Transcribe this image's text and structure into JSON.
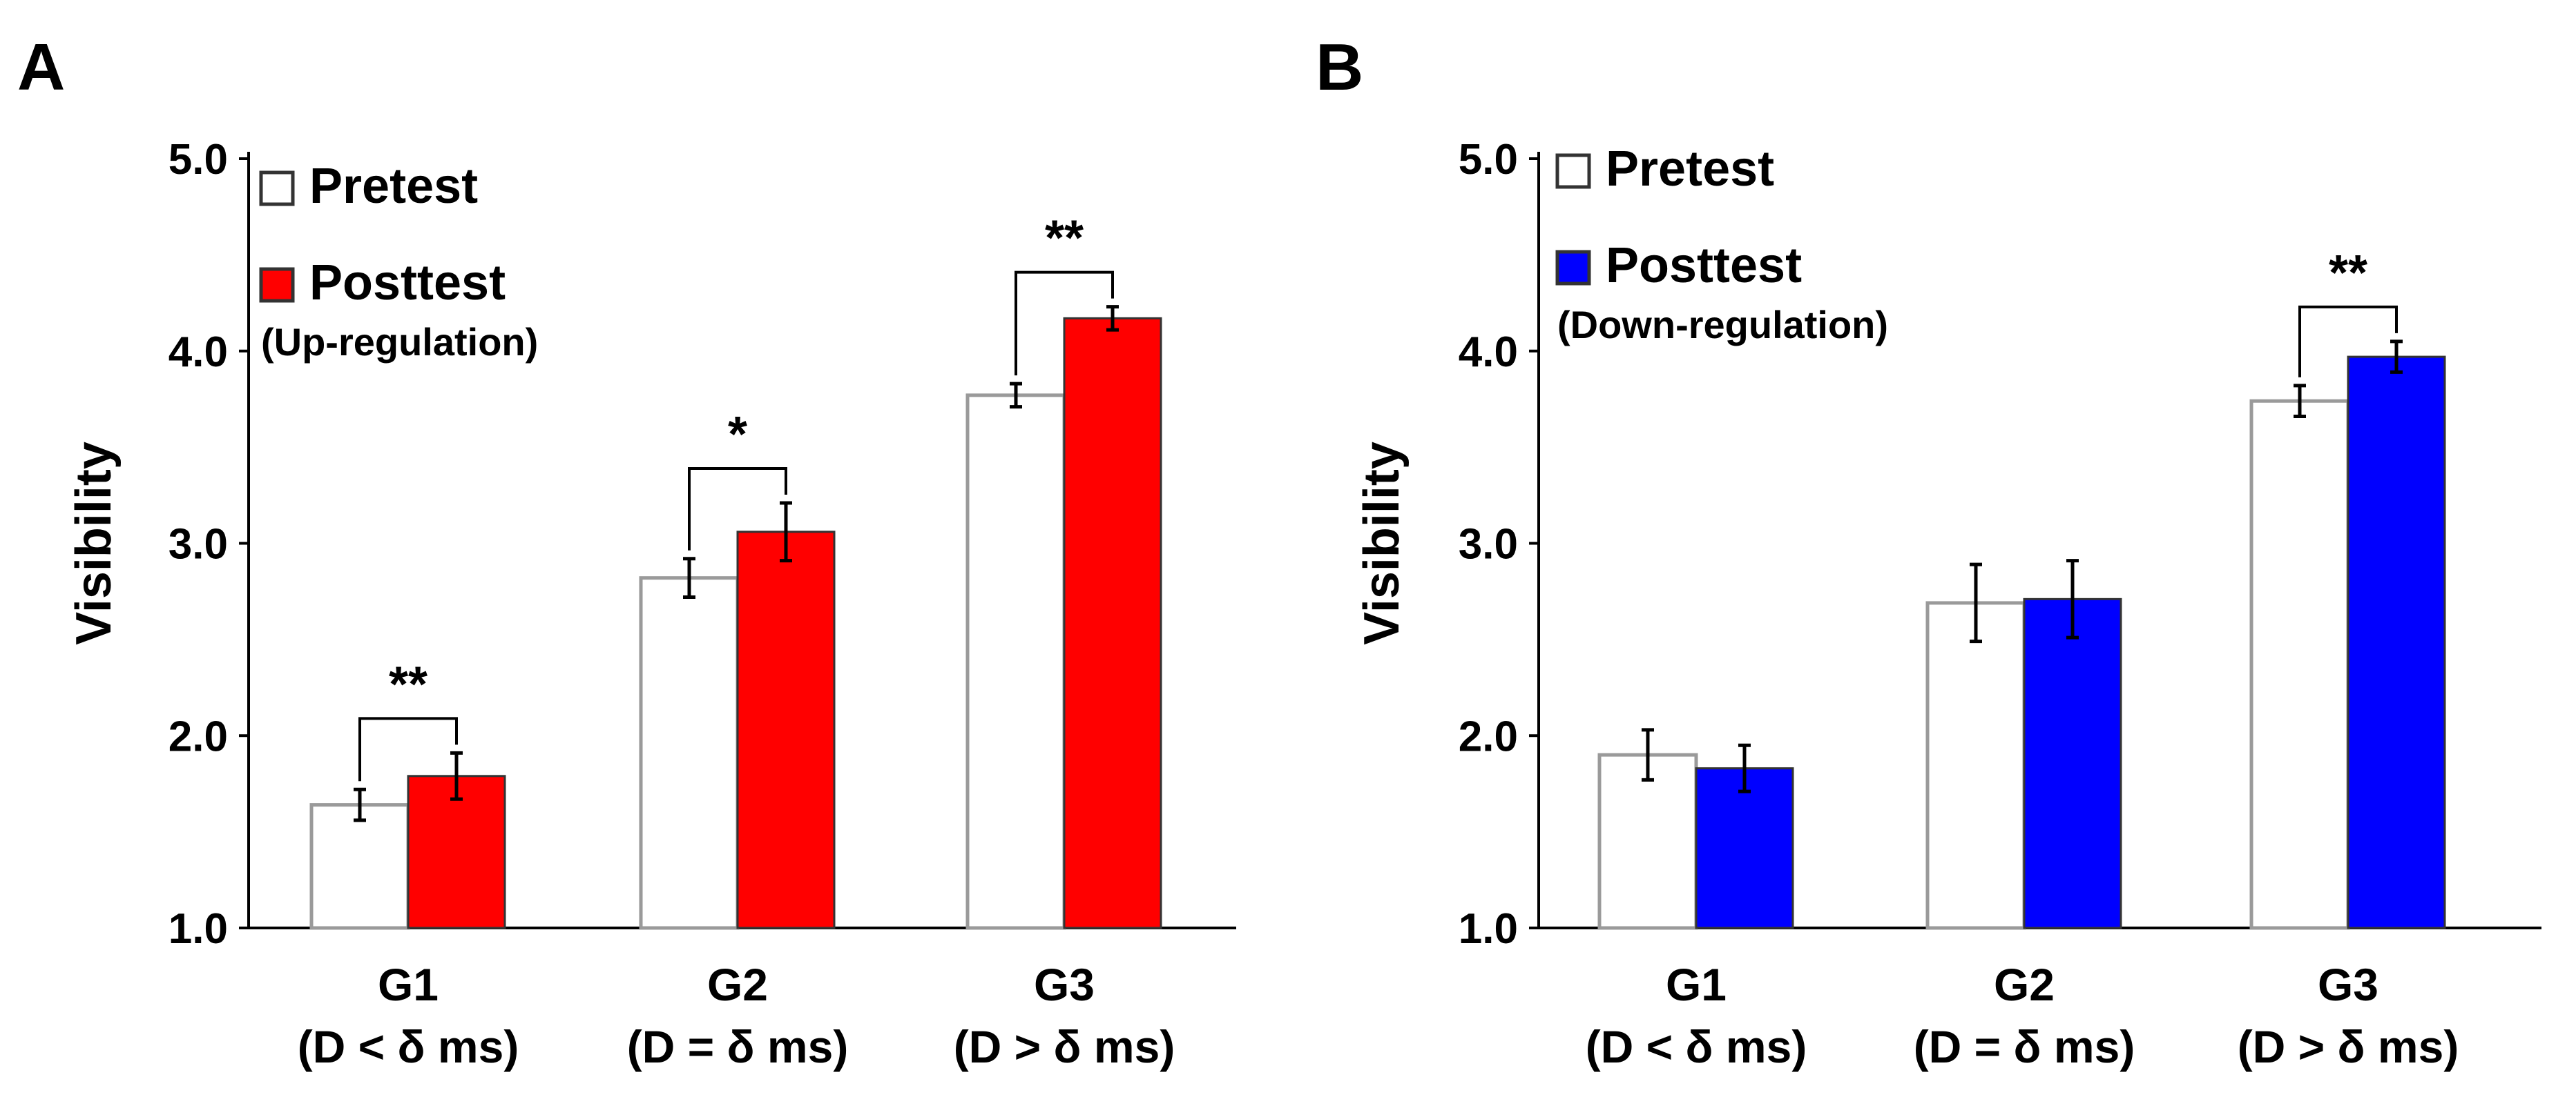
{
  "chart_data": [
    {
      "panel_label": "A",
      "type": "bar",
      "ylabel": "Visibility",
      "ylim": [
        1.0,
        5.0
      ],
      "yticks": [
        "1.0",
        "2.0",
        "3.0",
        "4.0",
        "5.0"
      ],
      "categories": [
        "G1",
        "G2",
        "G3"
      ],
      "category_sublabels": [
        "(D < δ ms)",
        "(D = δ ms)",
        "(D > δ ms)"
      ],
      "legend_note": "(Up-regulation)",
      "series": [
        {
          "name": "Pretest",
          "color": "#ffffff",
          "values": [
            1.64,
            2.82,
            3.77
          ],
          "errors": [
            0.08,
            0.1,
            0.06
          ]
        },
        {
          "name": "Posttest",
          "color": "#ff0000",
          "values": [
            1.79,
            3.06,
            4.17
          ],
          "errors": [
            0.12,
            0.15,
            0.06
          ]
        }
      ],
      "significance": [
        {
          "category": 0,
          "label": "**"
        },
        {
          "category": 1,
          "label": "*"
        },
        {
          "category": 2,
          "label": "**"
        }
      ]
    },
    {
      "panel_label": "B",
      "type": "bar",
      "ylabel": "Visibility",
      "ylim": [
        1.0,
        5.0
      ],
      "yticks": [
        "1.0",
        "2.0",
        "3.0",
        "4.0",
        "5.0"
      ],
      "categories": [
        "G1",
        "G2",
        "G3"
      ],
      "category_sublabels": [
        "(D < δ ms)",
        "(D = δ ms)",
        "(D > δ ms)"
      ],
      "legend_note": "(Down-regulation)",
      "series": [
        {
          "name": "Pretest",
          "color": "#ffffff",
          "values": [
            1.9,
            2.69,
            3.74
          ],
          "errors": [
            0.13,
            0.2,
            0.08
          ]
        },
        {
          "name": "Posttest",
          "color": "#0000ff",
          "values": [
            1.83,
            2.71,
            3.97
          ],
          "errors": [
            0.12,
            0.2,
            0.08
          ]
        }
      ],
      "significance": [
        {
          "category": 2,
          "label": "**"
        }
      ]
    }
  ]
}
